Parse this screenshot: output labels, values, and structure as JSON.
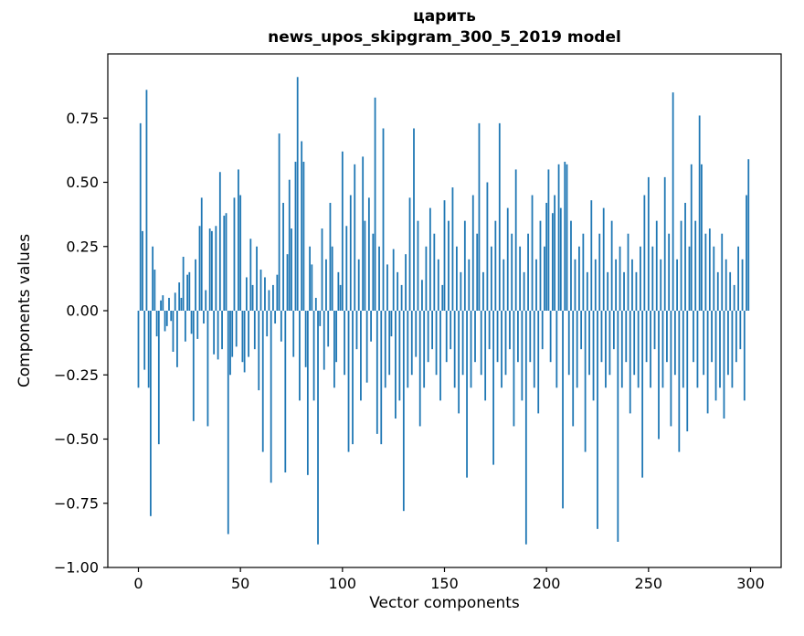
{
  "chart_data": {
    "type": "bar",
    "title": "царить",
    "subtitle": "news_upos_skipgram_300_5_2019 model",
    "xlabel": "Vector components",
    "ylabel": "Components values",
    "xlim": [
      -15,
      315
    ],
    "ylim": [
      -1.0,
      1.0
    ],
    "x_start": 0,
    "x_ticks": [
      0,
      50,
      100,
      150,
      200,
      250,
      300
    ],
    "x_tick_labels": [
      "0",
      "50",
      "100",
      "150",
      "200",
      "250",
      "300"
    ],
    "y_ticks": [
      -1.0,
      -0.75,
      -0.5,
      -0.25,
      0.0,
      0.25,
      0.5,
      0.75
    ],
    "y_tick_labels": [
      "−1.00",
      "−0.75",
      "−0.50",
      "−0.25",
      "0.00",
      "0.25",
      "0.50",
      "0.75"
    ],
    "bar_color": "#1f77b4",
    "bar_width": 0.8,
    "grid": false,
    "legend": null,
    "values": [
      -0.3,
      0.73,
      0.31,
      -0.23,
      0.86,
      -0.3,
      -0.8,
      0.25,
      0.16,
      -0.1,
      -0.52,
      0.04,
      0.06,
      -0.08,
      -0.06,
      0.05,
      -0.04,
      -0.16,
      0.07,
      -0.22,
      0.11,
      0.05,
      0.21,
      -0.12,
      0.14,
      0.15,
      -0.09,
      -0.43,
      0.2,
      -0.11,
      0.33,
      0.44,
      -0.05,
      0.08,
      -0.45,
      0.32,
      0.31,
      -0.17,
      0.33,
      -0.19,
      0.54,
      -0.15,
      0.37,
      0.38,
      -0.87,
      -0.25,
      -0.18,
      0.44,
      -0.14,
      0.55,
      0.45,
      -0.2,
      -0.24,
      0.13,
      -0.18,
      0.28,
      0.1,
      -0.15,
      0.25,
      -0.31,
      0.16,
      -0.55,
      0.13,
      -0.1,
      0.08,
      -0.67,
      0.1,
      -0.05,
      0.14,
      0.69,
      -0.12,
      0.42,
      -0.63,
      0.22,
      0.51,
      0.32,
      -0.18,
      0.58,
      0.91,
      -0.35,
      0.66,
      0.58,
      -0.22,
      -0.64,
      0.25,
      0.18,
      -0.35,
      0.05,
      -0.91,
      -0.06,
      0.32,
      -0.23,
      0.2,
      -0.14,
      0.42,
      0.25,
      -0.3,
      -0.2,
      0.15,
      0.1,
      0.62,
      -0.25,
      0.33,
      -0.55,
      0.45,
      -0.52,
      0.57,
      -0.15,
      0.2,
      -0.35,
      0.6,
      0.35,
      -0.28,
      0.44,
      -0.12,
      0.3,
      0.83,
      -0.48,
      0.25,
      -0.52,
      0.71,
      -0.3,
      0.18,
      -0.25,
      -0.1,
      0.24,
      -0.42,
      0.15,
      -0.35,
      0.1,
      -0.78,
      0.22,
      -0.3,
      0.44,
      -0.25,
      0.71,
      -0.18,
      0.35,
      -0.45,
      0.12,
      -0.3,
      0.25,
      -0.2,
      0.4,
      -0.15,
      0.3,
      -0.25,
      0.2,
      -0.35,
      0.1,
      0.43,
      -0.2,
      0.35,
      -0.15,
      0.48,
      -0.3,
      0.25,
      -0.4,
      0.15,
      -0.25,
      0.35,
      -0.65,
      0.2,
      -0.3,
      0.45,
      -0.2,
      0.3,
      0.73,
      -0.25,
      0.15,
      -0.35,
      0.5,
      -0.15,
      0.25,
      -0.6,
      0.35,
      -0.2,
      0.73,
      -0.3,
      0.2,
      -0.25,
      0.4,
      -0.15,
      0.3,
      -0.45,
      0.55,
      -0.2,
      0.25,
      -0.35,
      0.15,
      -0.91,
      0.3,
      -0.2,
      0.45,
      -0.3,
      0.2,
      -0.4,
      0.35,
      -0.15,
      0.25,
      0.42,
      0.55,
      -0.2,
      0.38,
      0.45,
      -0.3,
      0.57,
      0.4,
      -0.77,
      0.58,
      0.57,
      -0.25,
      0.35,
      -0.45,
      0.2,
      -0.3,
      0.25,
      -0.15,
      0.3,
      -0.55,
      0.15,
      -0.25,
      0.43,
      -0.35,
      0.2,
      -0.85,
      0.3,
      -0.2,
      0.4,
      -0.3,
      0.15,
      -0.25,
      0.35,
      -0.15,
      0.2,
      -0.9,
      0.25,
      -0.3,
      0.15,
      -0.2,
      0.3,
      -0.4,
      0.2,
      -0.25,
      0.15,
      -0.3,
      0.25,
      -0.65,
      0.45,
      -0.2,
      0.52,
      -0.3,
      0.25,
      -0.15,
      0.35,
      -0.5,
      0.2,
      -0.3,
      0.52,
      -0.2,
      0.3,
      -0.45,
      0.85,
      -0.25,
      0.2,
      -0.55,
      0.35,
      -0.3,
      0.42,
      -0.47,
      0.25,
      0.57,
      -0.2,
      0.35,
      -0.3,
      0.76,
      0.57,
      -0.25,
      0.3,
      -0.4,
      0.32,
      -0.2,
      0.25,
      -0.35,
      0.15,
      -0.3,
      0.3,
      -0.42,
      0.2,
      -0.25,
      0.15,
      -0.3,
      0.1,
      -0.2,
      0.25,
      -0.15,
      0.2,
      -0.35,
      0.45,
      0.59
    ]
  }
}
